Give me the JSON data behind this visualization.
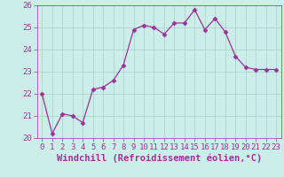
{
  "x": [
    0,
    1,
    2,
    3,
    4,
    5,
    6,
    7,
    8,
    9,
    10,
    11,
    12,
    13,
    14,
    15,
    16,
    17,
    18,
    19,
    20,
    21,
    22,
    23
  ],
  "y": [
    22.0,
    20.2,
    21.1,
    21.0,
    20.7,
    22.2,
    22.3,
    22.6,
    23.3,
    24.9,
    25.1,
    25.0,
    24.7,
    25.2,
    25.2,
    25.8,
    24.9,
    25.4,
    24.8,
    23.7,
    23.2,
    23.1,
    23.1,
    23.1
  ],
  "line_color": "#993399",
  "marker": "D",
  "marker_size": 2.5,
  "bg_color": "#cceee8",
  "grid_color": "#aacccc",
  "xlabel": "Windchill (Refroidissement éolien,°C)",
  "ylim": [
    20,
    26
  ],
  "xlim": [
    -0.5,
    23.5
  ],
  "yticks": [
    20,
    21,
    22,
    23,
    24,
    25,
    26
  ],
  "xticks": [
    0,
    1,
    2,
    3,
    4,
    5,
    6,
    7,
    8,
    9,
    10,
    11,
    12,
    13,
    14,
    15,
    16,
    17,
    18,
    19,
    20,
    21,
    22,
    23
  ],
  "tick_color": "#993399",
  "label_color": "#993399",
  "tick_fontsize": 6.5,
  "xlabel_fontsize": 7.5
}
